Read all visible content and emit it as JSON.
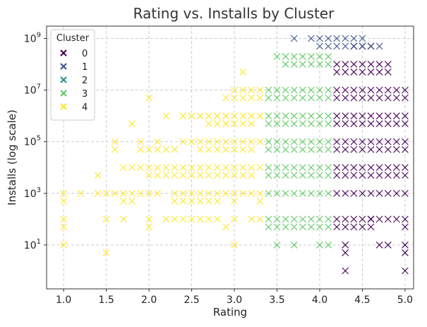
{
  "chart_data": {
    "type": "scatter",
    "title": "Rating vs. Installs by Cluster",
    "xlabel": "Rating",
    "ylabel": "Installs (log scale)",
    "xlim": [
      0.8,
      5.1
    ],
    "ylim": [
      0.2,
      3000000000
    ],
    "yscale": "log",
    "grid": true,
    "marker": "x",
    "x_ticks": [
      {
        "value": 1.0,
        "label": "1.0"
      },
      {
        "value": 1.5,
        "label": "1.5"
      },
      {
        "value": 2.0,
        "label": "2.0"
      },
      {
        "value": 2.5,
        "label": "2.5"
      },
      {
        "value": 3.0,
        "label": "3.0"
      },
      {
        "value": 3.5,
        "label": "3.5"
      },
      {
        "value": 4.0,
        "label": "4.0"
      },
      {
        "value": 4.5,
        "label": "4.5"
      },
      {
        "value": 5.0,
        "label": "5.0"
      }
    ],
    "y_ticks": [
      {
        "value": 10,
        "base": "10",
        "exp": "1"
      },
      {
        "value": 1000,
        "base": "10",
        "exp": "3"
      },
      {
        "value": 100000,
        "base": "10",
        "exp": "5"
      },
      {
        "value": 10000000,
        "base": "10",
        "exp": "7"
      },
      {
        "value": 1000000000,
        "base": "10",
        "exp": "9"
      }
    ],
    "legend": {
      "title": "Cluster",
      "position": "top-left",
      "entries": [
        {
          "label": "0",
          "color": "#440154"
        },
        {
          "label": "1",
          "color": "#3b528b"
        },
        {
          "label": "2",
          "color": "#21918c"
        },
        {
          "label": "3",
          "color": "#5ec962"
        },
        {
          "label": "4",
          "color": "#fde725"
        }
      ]
    },
    "series": [
      {
        "name": "0",
        "color": "#440154",
        "x_ranges": [
          {
            "from": 4.2,
            "to": 4.8,
            "y": [
              1000,
              5000,
              10000,
              50000,
              100000,
              500000,
              1000000,
              5000000,
              10000000,
              50000000,
              100000000
            ]
          },
          {
            "from": 4.2,
            "to": 4.6,
            "y": [
              100,
              50
            ]
          },
          {
            "from": 4.9,
            "to": 5.0,
            "y": [
              1000,
              5000,
              10000,
              50000,
              100000,
              500000,
              1000000,
              5000000,
              10000000
            ]
          }
        ],
        "points": [
          {
            "x": 4.4,
            "y": 500000000
          },
          {
            "x": 4.5,
            "y": 500000000
          },
          {
            "x": 4.6,
            "y": 500000000
          },
          {
            "x": 4.3,
            "y": 10
          },
          {
            "x": 4.3,
            "y": 5
          },
          {
            "x": 4.3,
            "y": 1
          },
          {
            "x": 4.7,
            "y": 10
          },
          {
            "x": 4.8,
            "y": 10
          },
          {
            "x": 5.0,
            "y": 100
          },
          {
            "x": 5.0,
            "y": 50
          },
          {
            "x": 5.0,
            "y": 10
          },
          {
            "x": 5.0,
            "y": 5
          },
          {
            "x": 5.0,
            "y": 1
          },
          {
            "x": 4.6,
            "y": 100
          },
          {
            "x": 4.7,
            "y": 100
          },
          {
            "x": 4.8,
            "y": 100
          },
          {
            "x": 4.9,
            "y": 100
          }
        ]
      },
      {
        "name": "1",
        "color": "#3b528b",
        "x_ranges": [
          {
            "from": 3.9,
            "to": 4.5,
            "y": [
              1000000000
            ]
          },
          {
            "from": 4.0,
            "to": 4.7,
            "y": [
              500000000
            ]
          }
        ],
        "points": [
          {
            "x": 3.7,
            "y": 1000000000
          }
        ]
      },
      {
        "name": "2",
        "color": "#21918c",
        "x_ranges": [],
        "points": []
      },
      {
        "name": "3",
        "color": "#5ec962",
        "x_ranges": [
          {
            "from": 3.4,
            "to": 4.1,
            "y": [
              1000,
              5000,
              10000,
              50000,
              100000,
              500000,
              1000000,
              5000000,
              10000000
            ]
          },
          {
            "from": 3.4,
            "to": 4.1,
            "y": [
              100,
              50
            ]
          },
          {
            "from": 3.6,
            "to": 4.1,
            "y": [
              200000000,
              100000000
            ]
          }
        ],
        "points": [
          {
            "x": 3.5,
            "y": 200000000
          },
          {
            "x": 3.5,
            "y": 10
          },
          {
            "x": 3.7,
            "y": 10
          },
          {
            "x": 4.0,
            "y": 10
          },
          {
            "x": 4.1,
            "y": 10
          }
        ]
      },
      {
        "name": "4",
        "color": "#fde725",
        "x_ranges": [
          {
            "from": 1.7,
            "to": 3.3,
            "y": [
              10000
            ]
          },
          {
            "from": 2.3,
            "to": 3.3,
            "y": [
              1000
            ]
          },
          {
            "from": 2.4,
            "to": 3.3,
            "y": [
              100000,
              1000000
            ]
          },
          {
            "from": 2.9,
            "to": 3.3,
            "y": [
              5000000
            ]
          },
          {
            "from": 2.9,
            "to": 3.2,
            "y": [
              500000,
              50000
            ]
          },
          {
            "from": 2.0,
            "to": 3.2,
            "y": [
              5000
            ]
          }
        ],
        "points": [
          {
            "x": 1.0,
            "y": 1000
          },
          {
            "x": 1.0,
            "y": 500
          },
          {
            "x": 1.0,
            "y": 100
          },
          {
            "x": 1.0,
            "y": 50
          },
          {
            "x": 1.0,
            "y": 10
          },
          {
            "x": 1.2,
            "y": 1000
          },
          {
            "x": 1.4,
            "y": 1000
          },
          {
            "x": 1.5,
            "y": 1000
          },
          {
            "x": 1.6,
            "y": 1000
          },
          {
            "x": 1.7,
            "y": 1000
          },
          {
            "x": 1.8,
            "y": 1000
          },
          {
            "x": 1.9,
            "y": 1000
          },
          {
            "x": 2.0,
            "y": 1000
          },
          {
            "x": 2.1,
            "y": 1000
          },
          {
            "x": 1.4,
            "y": 5000
          },
          {
            "x": 1.5,
            "y": 100
          },
          {
            "x": 1.5,
            "y": 5
          },
          {
            "x": 1.6,
            "y": 100000
          },
          {
            "x": 1.6,
            "y": 50000
          },
          {
            "x": 1.7,
            "y": 500
          },
          {
            "x": 1.7,
            "y": 100
          },
          {
            "x": 1.8,
            "y": 500
          },
          {
            "x": 1.8,
            "y": 500000
          },
          {
            "x": 1.9,
            "y": 100000
          },
          {
            "x": 1.9,
            "y": 50000
          },
          {
            "x": 2.0,
            "y": 5000000
          },
          {
            "x": 2.0,
            "y": 100
          },
          {
            "x": 2.0,
            "y": 50
          },
          {
            "x": 2.0,
            "y": 50000
          },
          {
            "x": 2.1,
            "y": 100000
          },
          {
            "x": 2.1,
            "y": 50000
          },
          {
            "x": 2.2,
            "y": 50000
          },
          {
            "x": 2.2,
            "y": 1000000
          },
          {
            "x": 2.3,
            "y": 50000
          },
          {
            "x": 2.3,
            "y": 500
          },
          {
            "x": 2.2,
            "y": 100
          },
          {
            "x": 2.3,
            "y": 100
          },
          {
            "x": 2.4,
            "y": 100
          },
          {
            "x": 2.5,
            "y": 100
          },
          {
            "x": 2.6,
            "y": 100
          },
          {
            "x": 2.7,
            "y": 100
          },
          {
            "x": 2.8,
            "y": 100
          },
          {
            "x": 3.0,
            "y": 100
          },
          {
            "x": 2.4,
            "y": 500
          },
          {
            "x": 2.5,
            "y": 500
          },
          {
            "x": 2.6,
            "y": 500
          },
          {
            "x": 2.7,
            "y": 500
          },
          {
            "x": 2.8,
            "y": 500
          },
          {
            "x": 3.0,
            "y": 500
          },
          {
            "x": 2.6,
            "y": 50000
          },
          {
            "x": 2.7,
            "y": 500000
          },
          {
            "x": 2.8,
            "y": 500000
          },
          {
            "x": 2.7,
            "y": 50000
          },
          {
            "x": 2.8,
            "y": 50000
          },
          {
            "x": 3.0,
            "y": 10
          },
          {
            "x": 3.1,
            "y": 50000000
          },
          {
            "x": 3.0,
            "y": 10000000
          },
          {
            "x": 3.1,
            "y": 10000000
          },
          {
            "x": 3.2,
            "y": 10000000
          },
          {
            "x": 3.3,
            "y": 10000000
          },
          {
            "x": 2.9,
            "y": 50
          },
          {
            "x": 3.2,
            "y": 100
          },
          {
            "x": 3.3,
            "y": 100
          },
          {
            "x": 3.3,
            "y": 500
          }
        ]
      }
    ]
  }
}
